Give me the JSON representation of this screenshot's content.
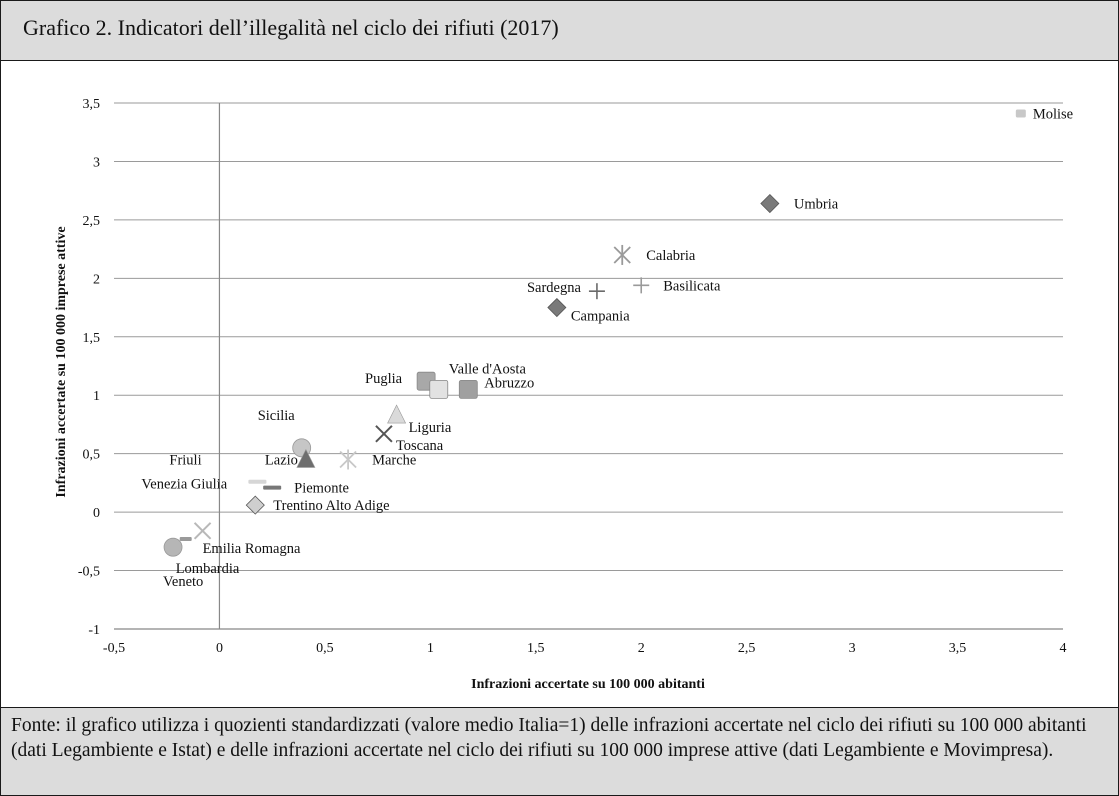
{
  "header": {
    "title": "Grafico 2. Indicatori dell’illegalità nel ciclo dei rifiuti (2017)"
  },
  "footer": {
    "source": "Fonte: il grafico utilizza i quozienti standardizzati (valore medio Italia=1) delle infrazioni accertate nel ciclo dei rifiuti su 100 000 abitanti (dati Legambiente e Istat) e delle infrazioni accertate nel ciclo dei rifiuti su 100 000 imprese attive (dati Legambiente e Movimpresa)."
  },
  "chart_data": {
    "type": "scatter",
    "title": "Grafico 2. Indicatori dell’illegalità nel ciclo dei rifiuti (2017)",
    "xlabel": "Infrazioni accertate su 100 000 abitanti",
    "ylabel": "Infrazioni accertate su 100 000 imprese attive",
    "xlim": [
      -0.5,
      4
    ],
    "ylim": [
      -1,
      3.5
    ],
    "x_ticks": [
      "-0,5",
      "0",
      "0,5",
      "1",
      "1,5",
      "2",
      "2,5",
      "3",
      "3,5",
      "4"
    ],
    "y_ticks": [
      "-1",
      "-0,5",
      "0",
      "0,5",
      "1",
      "1,5",
      "2",
      "2,5",
      "3",
      "3,5"
    ],
    "grid": "horizontal",
    "legend": "none",
    "points": [
      {
        "label": "Molise",
        "x": 3.8,
        "y": 3.41,
        "marker": "square-small",
        "color": "#c8c8c8"
      },
      {
        "label": "Umbria",
        "x": 2.61,
        "y": 2.64,
        "marker": "diamond",
        "color": "#7a7a7a"
      },
      {
        "label": "Calabria",
        "x": 1.91,
        "y": 2.2,
        "marker": "star",
        "color": "#9a9a9a"
      },
      {
        "label": "Basilicata",
        "x": 2.0,
        "y": 1.94,
        "marker": "plus",
        "color": "#9a9a9a"
      },
      {
        "label": "Sardegna",
        "x": 1.79,
        "y": 1.89,
        "marker": "plus",
        "color": "#6a6a6a"
      },
      {
        "label": "Campania",
        "x": 1.6,
        "y": 1.75,
        "marker": "diamond",
        "color": "#7a7a7a"
      },
      {
        "label": "Puglia",
        "x": 0.98,
        "y": 1.12,
        "marker": "square",
        "color": "#a8a8a8"
      },
      {
        "label": "Valle d'Aosta",
        "x": 1.04,
        "y": 1.05,
        "marker": "square",
        "color": "#e2e2e2"
      },
      {
        "label": "Abruzzo",
        "x": 1.18,
        "y": 1.05,
        "marker": "square",
        "color": "#a0a0a0"
      },
      {
        "label": "Liguria",
        "x": 0.84,
        "y": 0.83,
        "marker": "triangle",
        "color": "#dadada"
      },
      {
        "label": "Toscana",
        "x": 0.78,
        "y": 0.67,
        "marker": "x",
        "color": "#555555"
      },
      {
        "label": "Sicilia",
        "x": 0.39,
        "y": 0.55,
        "marker": "circle",
        "color": "#c6c6c6"
      },
      {
        "label": "Lazio",
        "x": 0.41,
        "y": 0.45,
        "marker": "triangle",
        "color": "#6e6e6e"
      },
      {
        "label": "Marche",
        "x": 0.61,
        "y": 0.45,
        "marker": "star",
        "color": "#c8c8c8"
      },
      {
        "label": "Friuli Venezia Giulia",
        "x": 0.18,
        "y": 0.26,
        "marker": "dash",
        "color": "#d6d6d6"
      },
      {
        "label": "Piemonte",
        "x": 0.25,
        "y": 0.21,
        "marker": "dash",
        "color": "#777777"
      },
      {
        "label": "Trentino Alto Adige",
        "x": 0.17,
        "y": 0.06,
        "marker": "diamond",
        "color": "#cfcfcf"
      },
      {
        "label": "Emilia Romagna",
        "x": -0.08,
        "y": -0.16,
        "marker": "x",
        "color": "#b8b8b8"
      },
      {
        "label": "Lombardia",
        "x": -0.16,
        "y": -0.23,
        "marker": "dash-small",
        "color": "#9a9a9a"
      },
      {
        "label": "Veneto",
        "x": -0.22,
        "y": -0.3,
        "marker": "circle",
        "color": "#b6b6b6"
      }
    ]
  }
}
